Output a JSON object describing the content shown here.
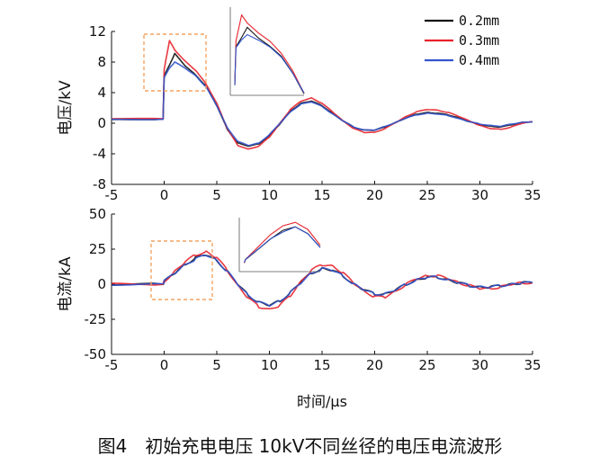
{
  "caption": "图4　初始充电电压 10kV不同丝径的电压电流波形",
  "colors": {
    "0.2mm": "#111111",
    "0.3mm": "#e8222b",
    "0.4mm": "#3355cc",
    "inset_box": "#f4a460"
  },
  "chart_data": [
    {
      "type": "line",
      "ylabel": "电压/kV",
      "xlabel": "",
      "xlim": [
        -5,
        35
      ],
      "ylim": [
        -8,
        12
      ],
      "xticks": [
        "-5",
        "0",
        "5",
        "10",
        "15",
        "20",
        "25",
        "30",
        "35"
      ],
      "yticks": [
        "12",
        "8",
        "4",
        "0",
        "-4",
        "-8"
      ],
      "legend": {
        "position": "top-right",
        "entries": [
          "0.2mm",
          "0.3mm",
          "0.4mm"
        ]
      },
      "series": [
        {
          "name": "0.2mm",
          "x": [
            -5,
            -0.1,
            0,
            0.5,
            1,
            2,
            3,
            4,
            5,
            6,
            7,
            8,
            9,
            10,
            11,
            12,
            13,
            14,
            15,
            16,
            17,
            18,
            19,
            20,
            21,
            22,
            23,
            24,
            25,
            26,
            27,
            28,
            29,
            30,
            31,
            32,
            33,
            34,
            35
          ],
          "y": [
            0.5,
            0.5,
            6.2,
            7.6,
            9.1,
            7.5,
            6.3,
            4.8,
            2.3,
            -0.8,
            -2.6,
            -3.0,
            -2.7,
            -1.6,
            -0.1,
            1.6,
            2.6,
            2.9,
            2.3,
            1.3,
            0.3,
            -0.5,
            -0.9,
            -0.9,
            -0.5,
            0.1,
            0.7,
            1.2,
            1.4,
            1.3,
            1.1,
            0.7,
            0.2,
            -0.2,
            -0.4,
            -0.5,
            -0.2,
            0.1,
            0.2
          ]
        },
        {
          "name": "0.3mm",
          "x": [
            -5,
            -0.1,
            0,
            0.5,
            1,
            2,
            3,
            4,
            5,
            6,
            7,
            8,
            9,
            10,
            11,
            12,
            13,
            14,
            15,
            16,
            17,
            18,
            19,
            20,
            21,
            22,
            23,
            24,
            25,
            26,
            27,
            28,
            29,
            30,
            31,
            32,
            33,
            34,
            35
          ],
          "y": [
            0.6,
            0.6,
            7.0,
            10.8,
            9.6,
            8.1,
            6.9,
            5.1,
            2.6,
            -0.7,
            -2.9,
            -3.4,
            -3.0,
            -1.8,
            0.0,
            1.8,
            2.9,
            3.3,
            2.6,
            1.5,
            0.3,
            -0.7,
            -1.2,
            -1.2,
            -0.7,
            0.1,
            0.9,
            1.5,
            1.8,
            1.7,
            1.4,
            0.9,
            0.3,
            -0.3,
            -0.7,
            -0.8,
            -0.5,
            0.0,
            0.2
          ]
        },
        {
          "name": "0.4mm",
          "x": [
            -5,
            -0.1,
            0,
            0.5,
            1,
            2,
            3,
            4,
            5,
            6,
            7,
            8,
            9,
            10,
            11,
            12,
            13,
            14,
            15,
            16,
            17,
            18,
            19,
            20,
            21,
            22,
            23,
            24,
            25,
            26,
            27,
            28,
            29,
            30,
            31,
            32,
            33,
            34,
            35
          ],
          "y": [
            0.5,
            0.5,
            6.0,
            7.2,
            8.0,
            7.2,
            6.2,
            4.7,
            2.3,
            -0.6,
            -2.4,
            -2.9,
            -2.6,
            -1.5,
            0.0,
            1.5,
            2.5,
            2.8,
            2.2,
            1.2,
            0.3,
            -0.5,
            -0.9,
            -0.9,
            -0.4,
            0.1,
            0.7,
            1.1,
            1.3,
            1.2,
            1.0,
            0.6,
            0.2,
            -0.1,
            -0.3,
            -0.4,
            -0.1,
            0.1,
            0.2
          ]
        }
      ]
    },
    {
      "type": "line",
      "ylabel": "电流/kA",
      "xlabel": "时间/μs",
      "xlim": [
        -5,
        35
      ],
      "ylim": [
        -50,
        50
      ],
      "xticks": [
        "-5",
        "0",
        "5",
        "10",
        "15",
        "20",
        "25",
        "30",
        "35"
      ],
      "yticks": [
        "50",
        "25",
        "0",
        "-25",
        "-50"
      ],
      "series": [
        {
          "name": "0.2mm",
          "x": [
            -5,
            -0.1,
            0,
            1,
            2,
            3,
            4,
            5,
            6,
            7,
            8,
            9,
            10,
            11,
            12,
            13,
            14,
            15,
            16,
            17,
            18,
            19,
            20,
            21,
            22,
            23,
            24,
            25,
            26,
            27,
            28,
            29,
            30,
            31,
            32,
            33,
            34,
            35
          ],
          "y": [
            0,
            0,
            2,
            8,
            14,
            19,
            21,
            17,
            9,
            0,
            -8,
            -13,
            -15,
            -12,
            -6,
            2,
            8,
            11,
            10,
            6,
            0,
            -4,
            -7,
            -7,
            -4,
            0,
            3,
            5,
            5,
            3,
            1,
            -1,
            -2,
            -2,
            -1,
            0,
            1,
            1
          ]
        },
        {
          "name": "0.3mm",
          "x": [
            -5,
            -0.1,
            0,
            1,
            2,
            3,
            4,
            5,
            6,
            7,
            8,
            9,
            10,
            11,
            12,
            13,
            14,
            15,
            16,
            17,
            18,
            19,
            20,
            21,
            22,
            23,
            24,
            25,
            26,
            27,
            28,
            29,
            30,
            31,
            32,
            33,
            34,
            35
          ],
          "y": [
            0,
            0,
            2,
            9,
            16,
            21,
            23,
            19,
            10,
            -1,
            -10,
            -16,
            -18,
            -15,
            -8,
            2,
            10,
            14,
            13,
            8,
            1,
            -5,
            -9,
            -9,
            -5,
            0,
            4,
            6,
            6,
            4,
            1,
            -1,
            -3,
            -3,
            -2,
            0,
            1,
            1
          ]
        },
        {
          "name": "0.4mm",
          "x": [
            -5,
            -0.1,
            0,
            1,
            2,
            3,
            4,
            5,
            6,
            7,
            8,
            9,
            10,
            11,
            12,
            13,
            14,
            15,
            16,
            17,
            18,
            19,
            20,
            21,
            22,
            23,
            24,
            25,
            26,
            27,
            28,
            29,
            30,
            31,
            32,
            33,
            34,
            35
          ],
          "y": [
            0,
            0,
            2,
            8,
            14,
            18,
            21,
            17,
            9,
            0,
            -8,
            -13,
            -15,
            -12,
            -6,
            1,
            8,
            11,
            10,
            6,
            0,
            -4,
            -7,
            -7,
            -4,
            0,
            3,
            5,
            5,
            3,
            1,
            -1,
            -2,
            -2,
            -1,
            0,
            1,
            1
          ]
        }
      ]
    }
  ]
}
